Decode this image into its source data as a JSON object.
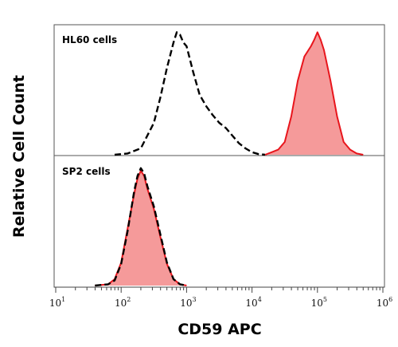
{
  "chart_data": {
    "type": "area",
    "xlabel": "CD59 APC",
    "ylabel": "Relative Cell Count",
    "x_scale": "log",
    "xlim": [
      10,
      1000000
    ],
    "x_ticks": [
      {
        "base": "10",
        "exp": "1",
        "value": 10
      },
      {
        "base": "10",
        "exp": "2",
        "value": 100
      },
      {
        "base": "10",
        "exp": "3",
        "value": 1000
      },
      {
        "base": "10",
        "exp": "4",
        "value": 10000
      },
      {
        "base": "10",
        "exp": "5",
        "value": 100000
      },
      {
        "base": "10",
        "exp": "6",
        "value": 1000000
      }
    ],
    "grid": false,
    "panels": [
      {
        "label": "HL60 cells",
        "series": [
          {
            "style": "dashed-black",
            "color": "#000000",
            "x": [
              1.9,
              2.1,
              2.3,
              2.5,
              2.6,
              2.7,
              2.8,
              2.85,
              2.9,
              2.95,
              3.0,
              3.1,
              3.2,
              3.3,
              3.4,
              3.5,
              3.6,
              3.7,
              3.8,
              3.9,
              4.0,
              4.1,
              4.2
            ],
            "y": [
              0,
              0.01,
              0.05,
              0.25,
              0.45,
              0.68,
              0.88,
              0.96,
              0.94,
              0.88,
              0.85,
              0.65,
              0.47,
              0.38,
              0.31,
              0.25,
              0.21,
              0.15,
              0.09,
              0.05,
              0.02,
              0.005,
              0
            ]
          },
          {
            "style": "filled-red",
            "color": "#e8151c",
            "fill": "#f59a9a",
            "x": [
              4.2,
              4.3,
              4.4,
              4.5,
              4.6,
              4.7,
              4.8,
              4.9,
              4.95,
              5.0,
              5.05,
              5.1,
              5.2,
              5.3,
              5.4,
              5.5,
              5.6,
              5.7
            ],
            "y": [
              0,
              0.02,
              0.04,
              0.1,
              0.3,
              0.58,
              0.77,
              0.85,
              0.9,
              0.96,
              0.9,
              0.82,
              0.58,
              0.3,
              0.1,
              0.04,
              0.01,
              0
            ]
          }
        ]
      },
      {
        "label": "SP2 cells",
        "series": [
          {
            "style": "filled-red",
            "color": "#e8151c",
            "fill": "#f59a9a",
            "x": [
              1.6,
              1.8,
              1.9,
              2.0,
              2.1,
              2.2,
              2.25,
              2.3,
              2.35,
              2.4,
              2.5,
              2.6,
              2.7,
              2.8,
              2.9,
              3.0
            ],
            "y": [
              0,
              0.01,
              0.05,
              0.18,
              0.45,
              0.72,
              0.84,
              0.9,
              0.86,
              0.76,
              0.6,
              0.38,
              0.17,
              0.05,
              0.01,
              0
            ]
          },
          {
            "style": "dashed-black",
            "color": "#000000",
            "x": [
              1.6,
              1.8,
              1.9,
              2.0,
              2.1,
              2.2,
              2.25,
              2.3,
              2.35,
              2.4,
              2.5,
              2.6,
              2.7,
              2.8,
              2.9,
              3.0
            ],
            "y": [
              0,
              0.01,
              0.04,
              0.17,
              0.43,
              0.74,
              0.86,
              0.92,
              0.88,
              0.78,
              0.62,
              0.4,
              0.18,
              0.05,
              0.01,
              0
            ]
          }
        ]
      }
    ]
  }
}
